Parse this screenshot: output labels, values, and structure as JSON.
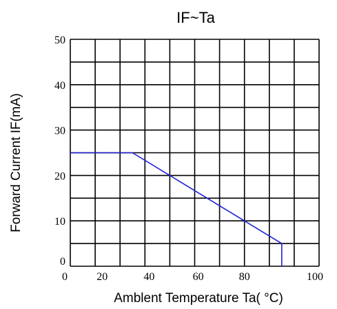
{
  "chart_data": {
    "type": "line",
    "title": "IF~Ta",
    "xlabel": "Amblent Temperature Ta(  °C)",
    "ylabel": "Forward  Current IF(mA)",
    "xlim": [
      0,
      100
    ],
    "ylim": [
      0,
      50
    ],
    "xticks": [
      0,
      20,
      40,
      60,
      80,
      100
    ],
    "yticks": [
      0,
      10,
      20,
      30,
      40,
      50
    ],
    "grid": true,
    "grid_x": [
      0,
      10,
      20,
      30,
      40,
      50,
      60,
      70,
      80,
      90,
      100
    ],
    "grid_y": [
      0,
      5,
      10,
      15,
      20,
      25,
      30,
      35,
      40,
      45,
      50
    ],
    "series": [
      {
        "color": "#1f1fd6",
        "x": [
          0,
          25,
          85,
          85
        ],
        "y": [
          25,
          25,
          5,
          0
        ]
      }
    ]
  }
}
